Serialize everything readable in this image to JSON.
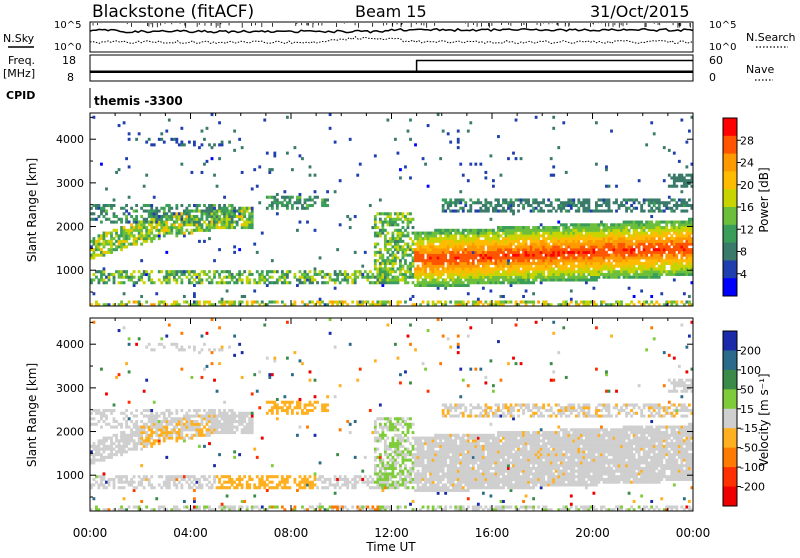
{
  "header": {
    "station": "Blackstone (fitACF)",
    "beam": "Beam 15",
    "date": "31/Oct/2015"
  },
  "noise_panel": {
    "left_label": "N.Sky",
    "left_ticks": [
      "10^5",
      "10^0"
    ],
    "right_label": "N.Search",
    "right_ticks": [
      "10^5",
      "10^0"
    ]
  },
  "freq_panel": {
    "label": "Freq.",
    "unit": "[MHz]",
    "left_ticks": [
      "18",
      "8"
    ],
    "right_ticks": [
      "60",
      "0"
    ],
    "right_label": "Nave",
    "freq_series": {
      "x_hours": [
        0,
        13,
        13,
        24
      ],
      "mhz": [
        11.5,
        11.5,
        11.5,
        11.5
      ]
    },
    "nave_series": {
      "x_hours": [
        0,
        13,
        13,
        24
      ],
      "nave": [
        20,
        20,
        51,
        51
      ]
    }
  },
  "cpid": {
    "label": "CPID",
    "text": "themis -3300"
  },
  "chart_data": [
    {
      "type": "heatmap",
      "name": "power",
      "ylabel": "Slant Range [km]",
      "xlabel": "Time UT",
      "y_ticks": [
        "1000",
        "2000",
        "3000",
        "4000"
      ],
      "x_ticks": [
        "00:00",
        "04:00",
        "08:00",
        "12:00",
        "16:00",
        "20:00",
        "00:00"
      ],
      "xlim_hours": [
        0,
        24
      ],
      "ylim_km": [
        180,
        4600
      ],
      "colorbar": {
        "label": "Power [dB]",
        "ticks": [
          "28",
          "24",
          "20",
          "16",
          "12",
          "8",
          "4"
        ],
        "colors": [
          "#ff0000",
          "#ff5500",
          "#ff9900",
          "#ffbb00",
          "#c8d400",
          "#6bbf3a",
          "#3a9d5a",
          "#3a7a6a",
          "#1f3fae",
          "#0000ff"
        ]
      }
    },
    {
      "type": "heatmap",
      "name": "velocity",
      "ylabel": "Slant Range [km]",
      "xlabel": "Time UT",
      "y_ticks": [
        "1000",
        "2000",
        "3000",
        "4000"
      ],
      "x_ticks": [
        "00:00",
        "04:00",
        "08:00",
        "12:00",
        "16:00",
        "20:00",
        "00:00"
      ],
      "xlim_hours": [
        0,
        24
      ],
      "ylim_km": [
        180,
        4600
      ],
      "colorbar": {
        "label": "Velocity [m s⁻¹]",
        "ticks": [
          "200",
          "100",
          "50",
          "15",
          "-15",
          "-50",
          "-100",
          "-200"
        ],
        "colors": [
          "#1a2aa8",
          "#2a6a8a",
          "#3a8a4a",
          "#7fcc3a",
          "#cfcfcf",
          "#ffb020",
          "#ff7a00",
          "#ff3000",
          "#ee0000"
        ]
      }
    }
  ],
  "x_axis_title": "Time UT"
}
